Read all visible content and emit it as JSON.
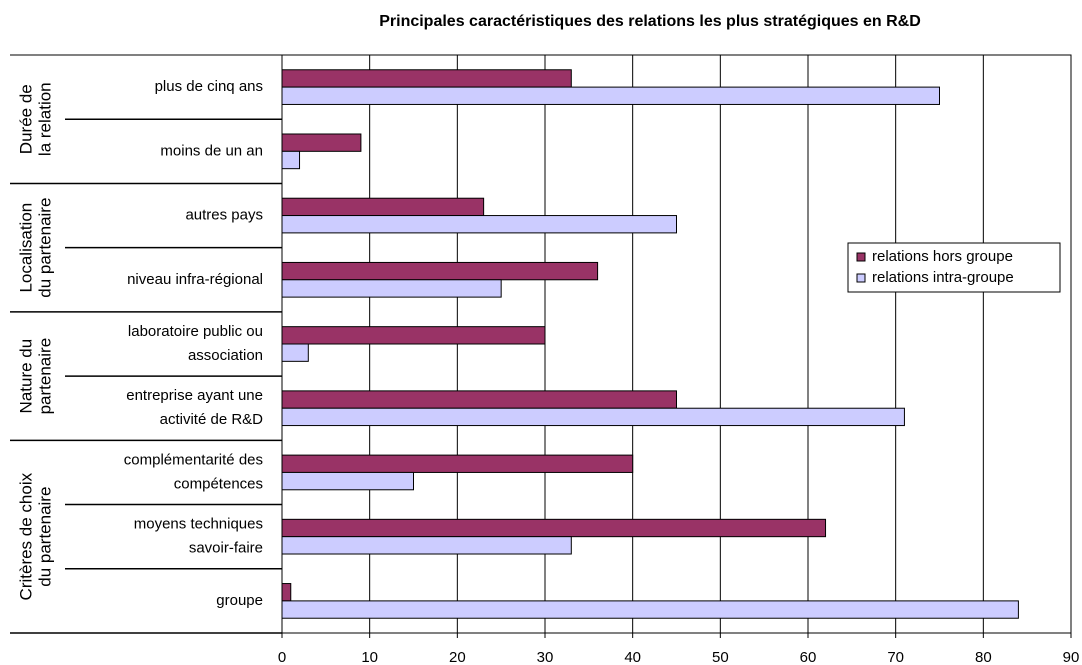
{
  "chart_data": {
    "type": "bar",
    "orientation": "horizontal",
    "title": "Principales caractéristiques des relations les plus stratégiques en R&D",
    "groups": [
      {
        "label": [
          "Durée de",
          "la relation"
        ],
        "categories": [
          [
            "plus de cinq ans"
          ],
          [
            "moins de un an"
          ]
        ]
      },
      {
        "label": [
          "Localisation",
          "du partenaire"
        ],
        "categories": [
          [
            "autres pays"
          ],
          [
            "niveau infra-régional"
          ]
        ]
      },
      {
        "label": [
          "Nature du",
          "partenaire"
        ],
        "categories": [
          [
            "laboratoire public ou",
            "association"
          ],
          [
            "entreprise ayant une",
            "activité de R&D"
          ]
        ]
      },
      {
        "label": [
          "Critères de choix",
          "du partenaire"
        ],
        "categories": [
          [
            "complémentarité des",
            "compétences"
          ],
          [
            "moyens techniques",
            "savoir-faire"
          ],
          [
            "groupe"
          ]
        ]
      }
    ],
    "series": [
      {
        "name": "relations hors groupe",
        "color": "#993366",
        "values": [
          33,
          9,
          23,
          36,
          30,
          45,
          40,
          62,
          1
        ]
      },
      {
        "name": "relations intra-groupe",
        "color": "#ccccff",
        "values": [
          75,
          2,
          45,
          25,
          3,
          71,
          15,
          33,
          84
        ]
      }
    ],
    "xlim": [
      0,
      90
    ],
    "xticks": [
      0,
      10,
      20,
      30,
      40,
      50,
      60,
      70,
      80,
      90
    ],
    "grid": true,
    "legend": "right"
  }
}
